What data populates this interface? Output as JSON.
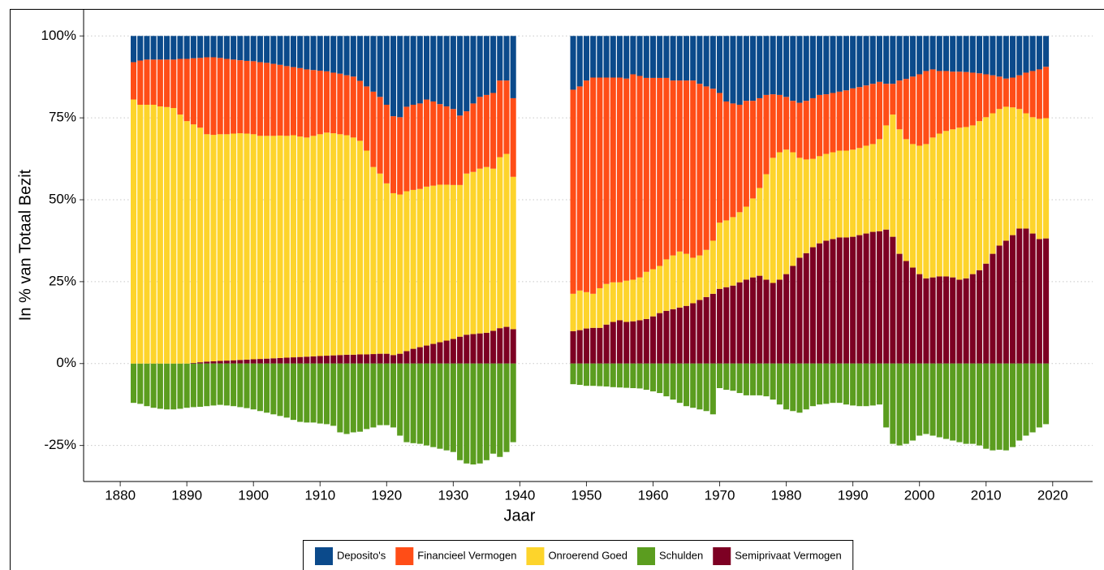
{
  "chart_data": {
    "type": "stacked_bar",
    "x_label": "Jaar",
    "y_label": "In % van Totaal Bezit",
    "xlim": [
      1874.5,
      2026
    ],
    "xticks": [
      1880,
      1890,
      1900,
      1910,
      1920,
      1930,
      1940,
      1950,
      1960,
      1970,
      1980,
      1990,
      2000,
      2010,
      2020
    ],
    "ylim": [
      -36,
      108
    ],
    "yticks": [
      {
        "value": -25,
        "label": "-25%"
      },
      {
        "value": 0,
        "label": "0%"
      },
      {
        "value": 25,
        "label": "25%"
      },
      {
        "value": 50,
        "label": "50%"
      },
      {
        "value": 75,
        "label": "75%"
      },
      {
        "value": 100,
        "label": "100%"
      }
    ],
    "grid": true,
    "legend": "bottom",
    "x": [
      1882,
      1883,
      1884,
      1885,
      1886,
      1887,
      1888,
      1889,
      1890,
      1891,
      1892,
      1893,
      1894,
      1895,
      1896,
      1897,
      1898,
      1899,
      1900,
      1901,
      1902,
      1903,
      1904,
      1905,
      1906,
      1907,
      1908,
      1909,
      1910,
      1911,
      1912,
      1913,
      1914,
      1915,
      1916,
      1917,
      1918,
      1919,
      1920,
      1921,
      1922,
      1923,
      1924,
      1925,
      1926,
      1927,
      1928,
      1929,
      1930,
      1931,
      1932,
      1933,
      1934,
      1935,
      1936,
      1937,
      1938,
      1939,
      1948,
      1949,
      1950,
      1951,
      1952,
      1953,
      1954,
      1955,
      1956,
      1957,
      1958,
      1959,
      1960,
      1961,
      1962,
      1963,
      1964,
      1965,
      1966,
      1967,
      1968,
      1969,
      1970,
      1971,
      1972,
      1973,
      1974,
      1975,
      1976,
      1977,
      1978,
      1979,
      1980,
      1981,
      1982,
      1983,
      1984,
      1985,
      1986,
      1987,
      1988,
      1989,
      1990,
      1991,
      1992,
      1993,
      1994,
      1995,
      1996,
      1997,
      1998,
      1999,
      2000,
      2001,
      2002,
      2003,
      2004,
      2005,
      2006,
      2007,
      2008,
      2009,
      2010,
      2011,
      2012,
      2013,
      2014,
      2015,
      2016,
      2017,
      2018,
      2019
    ],
    "series": [
      {
        "name": "Deposito's",
        "color": "#0b4a8b",
        "values": [
          8,
          7.5,
          7.2,
          7.2,
          7.2,
          7.2,
          7.2,
          7,
          7,
          6.8,
          6.7,
          6.5,
          6.5,
          6.7,
          7,
          7.2,
          7.4,
          7.6,
          7.7,
          8,
          8.2,
          8.5,
          8.8,
          9.2,
          9.5,
          9.8,
          10.2,
          10.4,
          10.6,
          10.8,
          11.2,
          11.5,
          12,
          12.4,
          13.7,
          15.4,
          17,
          18.6,
          21,
          24.5,
          24.8,
          21.6,
          21,
          20.6,
          19.4,
          20,
          20.8,
          21.5,
          22.3,
          24.3,
          23,
          20.6,
          18.6,
          18,
          17.4,
          13.6,
          13.6,
          19,
          16.4,
          15.4,
          13.6,
          12.7,
          12.7,
          12.7,
          12.7,
          12.7,
          13.0,
          11.7,
          12.2,
          12.8,
          12.8,
          12.8,
          12.8,
          13.6,
          13.6,
          13.6,
          13.6,
          14.6,
          15.4,
          16.1,
          17.4,
          20.0,
          20.6,
          21.0,
          19.8,
          19.8,
          19.0,
          18.0,
          17.8,
          18.0,
          18.6,
          19.8,
          20.4,
          19.8,
          19.0,
          18.0,
          17.8,
          17.4,
          17.0,
          16.6,
          16.0,
          15.6,
          15.1,
          14.6,
          14.0,
          14.6,
          14.6,
          13.6,
          13.1,
          12.4,
          11.7,
          10.7,
          10.2,
          10.7,
          10.7,
          10.9,
          10.9,
          11.0,
          11.2,
          11.4,
          11.7,
          12.0,
          12.4,
          13.0,
          12.7,
          12.0,
          11.2,
          10.7,
          10.2,
          9.4
        ]
      },
      {
        "name": "Financieel Vermogen",
        "color": "#ff4d17",
        "values": [
          11.4,
          13.5,
          13.8,
          13.8,
          14.3,
          14.5,
          14.8,
          17,
          19,
          20.2,
          21.3,
          23.5,
          23.7,
          23.3,
          23,
          22.6,
          22.3,
          22.2,
          22.3,
          22.5,
          22.3,
          22,
          21.6,
          21.3,
          20.8,
          20.9,
          20.8,
          20.1,
          19.4,
          18.7,
          18.5,
          18.5,
          18.3,
          18.6,
          18.3,
          19.6,
          23,
          23.4,
          24,
          23.5,
          23.6,
          25.8,
          26,
          26.1,
          26.6,
          25.7,
          24.6,
          23.9,
          23.2,
          21.2,
          19,
          20.9,
          21.9,
          22,
          23.1,
          23.4,
          22.4,
          24,
          62.3,
          62.3,
          64.6,
          66.0,
          64.3,
          63.0,
          62.5,
          62.5,
          61.7,
          62.7,
          61.5,
          59.2,
          58.4,
          57.4,
          55.4,
          53.4,
          52.2,
          52.9,
          54.1,
          52.4,
          49.9,
          46.4,
          39.6,
          36.3,
          34.7,
          32.8,
          32.3,
          29.8,
          27.4,
          24.2,
          19.4,
          17.5,
          16.1,
          15.7,
          16.8,
          17.9,
          18.5,
          18.7,
          18.2,
          18.1,
          18.0,
          18.4,
          18.7,
          18.6,
          18.4,
          18.4,
          17.5,
          12.7,
          9.4,
          14.9,
          18.4,
          20.6,
          21.8,
          22.3,
          20.8,
          19.1,
          18.3,
          17.6,
          17.1,
          16.8,
          16.1,
          14.6,
          13.1,
          11.6,
          9.9,
          8.6,
          9.1,
          10.3,
          12.4,
          14.1,
          15.1,
          15.7
        ]
      },
      {
        "name": "Onroerend Goed",
        "color": "#fdd42b",
        "values": [
          80.6,
          79,
          79,
          79,
          78.5,
          78.3,
          78,
          76,
          74,
          72.8,
          71.6,
          69.4,
          69.1,
          69.2,
          69.1,
          69.2,
          69.2,
          69,
          68.7,
          68.1,
          68,
          67.9,
          67.9,
          67.7,
          67.8,
          67.3,
          66.9,
          67.3,
          67.7,
          68.1,
          67.8,
          67.4,
          67,
          66.3,
          65.2,
          62.2,
          57.1,
          55,
          52,
          49.4,
          48.6,
          48.8,
          48.5,
          48.3,
          48.5,
          48.3,
          48.1,
          47.6,
          47,
          46.3,
          49.2,
          49.5,
          50.3,
          50.6,
          49.5,
          52.2,
          52.8,
          46.5,
          11.4,
          12.1,
          11.1,
          10.4,
          12.1,
          12.4,
          12.1,
          11.6,
          12.6,
          12.7,
          13.1,
          14.4,
          14.4,
          14.4,
          15.7,
          16.4,
          17.1,
          15.9,
          13.9,
          13.6,
          14.4,
          16.2,
          20.2,
          20.4,
          20.9,
          21.4,
          22.3,
          24.1,
          26.8,
          32.2,
          38.2,
          38.9,
          38.0,
          34.7,
          30.5,
          28.6,
          27.0,
          26.6,
          26.5,
          26.5,
          26.5,
          26.5,
          26.6,
          26.6,
          26.8,
          26.8,
          28.1,
          31.8,
          37.3,
          38.0,
          37.2,
          37.7,
          39.2,
          41.0,
          42.7,
          43.6,
          44.4,
          45.2,
          46.4,
          46.2,
          45.4,
          45.5,
          44.7,
          42.9,
          41.7,
          40.9,
          39.0,
          36.5,
          35.2,
          35.5,
          36.7,
          36.7
        ]
      },
      {
        "name": "Schulden",
        "color": "#5b9d1f",
        "values": [
          -12,
          -12.3,
          -13,
          -13.5,
          -13.8,
          -14,
          -14,
          -13.8,
          -13.5,
          -13.3,
          -13.2,
          -13,
          -12.8,
          -12.6,
          -12.8,
          -13,
          -13.3,
          -13.6,
          -14,
          -14.5,
          -15,
          -15.5,
          -16,
          -16.5,
          -17.2,
          -17.8,
          -18,
          -18,
          -18.3,
          -18.5,
          -19,
          -21,
          -21.5,
          -21,
          -20.8,
          -20,
          -19.5,
          -18.8,
          -18.8,
          -19.5,
          -22,
          -24,
          -24.3,
          -24.5,
          -25,
          -25.5,
          -26,
          -26.5,
          -27,
          -29.5,
          -30.5,
          -30.8,
          -30.5,
          -29.5,
          -27.5,
          -28.5,
          -27,
          -24,
          -6.3,
          -6.5,
          -6.8,
          -6.8,
          -6.9,
          -7,
          -7.2,
          -7.3,
          -7.4,
          -7.5,
          -7.6,
          -8,
          -8.5,
          -9,
          -10,
          -11,
          -12,
          -13,
          -13.5,
          -14,
          -14.5,
          -15.5,
          -7.5,
          -8,
          -8.3,
          -9,
          -9.7,
          -9.7,
          -9.7,
          -10,
          -11,
          -12.5,
          -14,
          -14.5,
          -15,
          -14,
          -13,
          -12.5,
          -12.3,
          -12,
          -12,
          -12.5,
          -12.8,
          -13,
          -13,
          -12.8,
          -12.5,
          -19.5,
          -24.5,
          -25,
          -24.5,
          -23.5,
          -22,
          -21.5,
          -22,
          -22.5,
          -23,
          -23.5,
          -24,
          -24.5,
          -24.5,
          -25,
          -26,
          -26.5,
          -26.3,
          -26.5,
          -25.5,
          -23.5,
          -22,
          -21,
          -19.5,
          -18.5
        ]
      },
      {
        "name": "Semiprivaat Vermogen",
        "color": "#7d0023",
        "values": [
          0,
          0,
          0,
          0,
          0,
          0,
          0,
          0,
          0,
          0.2,
          0.4,
          0.6,
          0.7,
          0.8,
          0.9,
          1.0,
          1.1,
          1.2,
          1.3,
          1.4,
          1.5,
          1.6,
          1.7,
          1.8,
          1.9,
          2.0,
          2.1,
          2.2,
          2.3,
          2.4,
          2.5,
          2.6,
          2.7,
          2.7,
          2.8,
          2.8,
          2.9,
          3.0,
          3.0,
          2.6,
          3.0,
          3.8,
          4.5,
          5.0,
          5.5,
          6.0,
          6.5,
          7.0,
          7.5,
          8.2,
          8.8,
          9.0,
          9.2,
          9.4,
          10.0,
          10.8,
          11.2,
          10.5,
          9.9,
          10.2,
          10.7,
          10.9,
          10.9,
          11.9,
          12.7,
          13.2,
          12.7,
          12.9,
          13.2,
          13.6,
          14.4,
          15.4,
          16.1,
          16.6,
          17.1,
          17.6,
          18.4,
          19.4,
          20.3,
          21.3,
          22.8,
          23.3,
          23.8,
          24.8,
          25.6,
          26.3,
          26.8,
          25.6,
          24.6,
          25.6,
          27.3,
          29.8,
          32.3,
          33.7,
          35.5,
          36.7,
          37.5,
          38.0,
          38.5,
          38.5,
          38.7,
          39.2,
          39.7,
          40.2,
          40.4,
          40.9,
          38.7,
          33.5,
          31.3,
          29.3,
          27.3,
          26.0,
          26.3,
          26.6,
          26.6,
          26.3,
          25.6,
          26.0,
          27.3,
          28.5,
          30.5,
          33.5,
          36.0,
          37.5,
          39.2,
          41.2,
          41.2,
          39.7,
          38.0,
          38.2
        ]
      }
    ]
  }
}
